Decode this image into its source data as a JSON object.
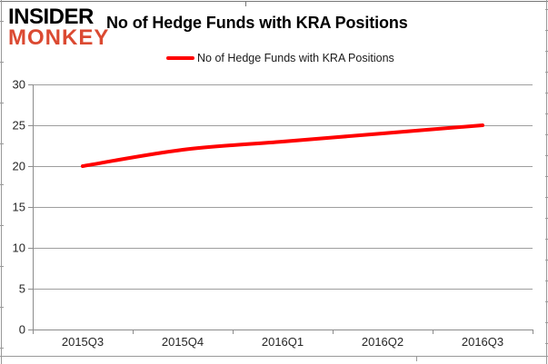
{
  "logo": {
    "line1": "INSIDER",
    "line2": "MONKEY",
    "line1_color": "#000000",
    "line2_color": "#DB4A32"
  },
  "header": {
    "title": "No of Hedge Funds with KRA Positions"
  },
  "legend": {
    "label": "No of Hedge Funds with KRA Positions",
    "swatch_color": "#FF0000"
  },
  "chart_data": {
    "type": "line",
    "title": "No of Hedge Funds with KRA Positions",
    "categories": [
      "2015Q3",
      "2015Q4",
      "2016Q1",
      "2016Q2",
      "2016Q3"
    ],
    "series": [
      {
        "name": "No of Hedge Funds with KRA Positions",
        "values": [
          20,
          22,
          23,
          24,
          25
        ],
        "color": "#FF0000",
        "smooth": true,
        "line_width": 4
      }
    ],
    "xlabel": "",
    "ylabel": "",
    "ylim": [
      0,
      30
    ],
    "ytick_step": 5,
    "yticks": [
      0,
      5,
      10,
      15,
      20,
      25,
      30
    ],
    "grid": true,
    "legend_position": "top-center",
    "grid_color": "#9E9E9E",
    "axis_color": "#8C8C8C",
    "axis_text_color": "#262626",
    "frame_color": "#999999"
  }
}
